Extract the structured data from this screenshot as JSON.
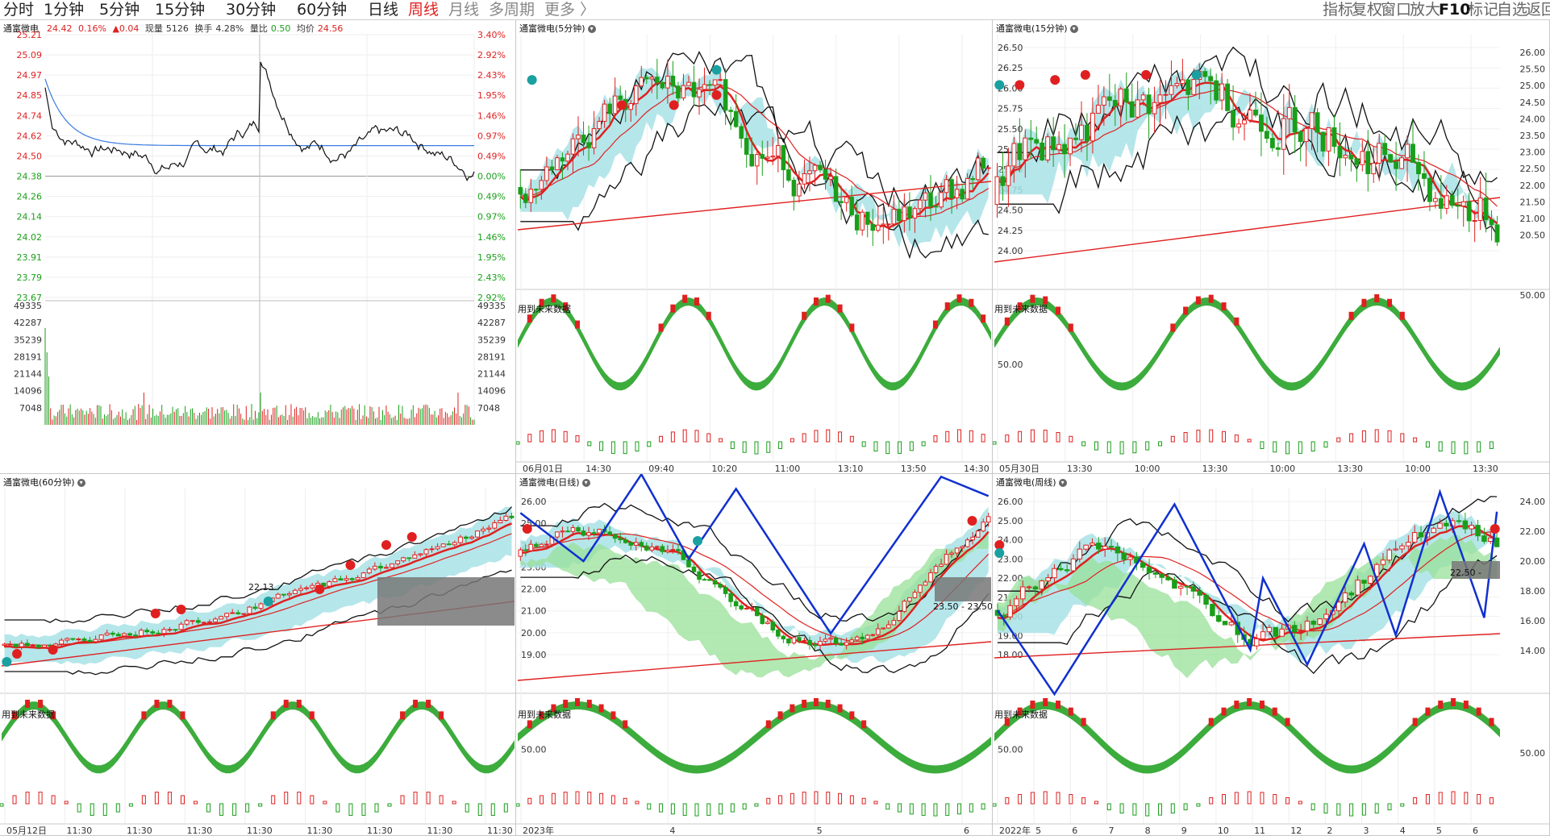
{
  "toolbar": {
    "tabs": [
      {
        "label": "分时",
        "active": false
      },
      {
        "label": "1分钟",
        "active": false
      },
      {
        "label": "5分钟",
        "active": false
      },
      {
        "label": "15分钟",
        "active": false
      },
      {
        "label": "30分钟",
        "active": false
      },
      {
        "label": "60分钟",
        "active": false
      },
      {
        "label": "日线",
        "active": false
      },
      {
        "label": "周线",
        "active": true
      },
      {
        "label": "月线",
        "active": false
      },
      {
        "label": "多周期",
        "active": false
      },
      {
        "label": "更多 〉",
        "active": false
      }
    ],
    "right": [
      "指标",
      "复权",
      "窗口",
      "放大",
      "F10",
      "标记",
      "自选",
      "返回"
    ]
  },
  "colors": {
    "up": "#e02020",
    "down": "#1a9e1a",
    "avg": "#3a7ae0",
    "price": "#111111",
    "grid": "#e6e6e6",
    "fill_cyan": "#a8e2e6",
    "fill_green": "#98e098",
    "zig": "#1030d0"
  },
  "icons": [
    "chevron-down-icon",
    "buy-signal-icon",
    "sell-signal-icon",
    "butterfly-icon",
    "up-arrow-icon",
    "down-arrow-icon"
  ],
  "panels": {
    "intraday": {
      "title": "通富微电",
      "info": {
        "price": "24.42",
        "pct": "0.16%",
        "chg": "▲0.04",
        "now_label": "现量",
        "now_val": "5126",
        "turn_label": "换手",
        "turn_val": "4.28%",
        "ratio_label": "量比",
        "ratio_val": "0.50",
        "avg_label": "均价",
        "avg_val": "24.56"
      },
      "price_ticks": [
        "25.21",
        "25.09",
        "24.97",
        "24.85",
        "24.74",
        "24.62",
        "24.50",
        "24.38",
        "24.26",
        "24.14",
        "24.02",
        "23.91",
        "23.79",
        "23.67"
      ],
      "pct_ticks": [
        "3.40%",
        "2.92%",
        "2.43%",
        "1.95%",
        "1.46%",
        "0.97%",
        "0.49%",
        "0.00%",
        "0.49%",
        "0.97%",
        "1.46%",
        "1.95%",
        "2.43%",
        "2.92%"
      ],
      "vol_ticks": [
        "49335",
        "42287",
        "35239",
        "28191",
        "21144",
        "14096",
        "7048"
      ]
    },
    "p5": {
      "title": "通富微电(5分钟)",
      "future": "用到未来数据",
      "x_labels": [
        "06月01日",
        "14:30",
        "09:40",
        "10:20",
        "11:00",
        "13:10",
        "13:50",
        "14:30"
      ]
    },
    "p15": {
      "title": "通富微电(15分钟)",
      "future": "用到未来数据",
      "y_ticks": [
        "26.50",
        "26.25",
        "26.00",
        "25.75",
        "25.50",
        "25.25",
        "25.00",
        "24.75",
        "24.50",
        "24.25",
        "24.00"
      ],
      "osc_tick": "50.00",
      "x_labels": [
        "05月30日",
        "13:30",
        "10:00",
        "13:30",
        "10:00",
        "13:30",
        "10:00",
        "13:30"
      ]
    },
    "p60": {
      "title": "通富微电(60分钟)",
      "future": "用到未来数据",
      "label": "22.13",
      "x_labels": [
        "05月12日",
        "11:30",
        "11:30",
        "11:30",
        "11:30",
        "11:30",
        "11:30",
        "11:30",
        "11:30"
      ]
    },
    "pday": {
      "title": "通富微电(日线)",
      "future": "用到未来数据",
      "y_ticks": [
        "26.00",
        "25.00",
        "24.00",
        "23.00",
        "22.00",
        "21.00",
        "20.00",
        "19.00"
      ],
      "osc_tick": "50.00",
      "label": "23.50 - 23.50",
      "x_labels": [
        "2023年",
        "4",
        "5",
        "6"
      ]
    },
    "pweek": {
      "title": "通富微电(周线)",
      "future": "用到未来数据",
      "y_ticks": [
        "26.00",
        "25.00",
        "24.00",
        "23.00",
        "22.00",
        "21.00",
        "20.00",
        "19.00",
        "18.00"
      ],
      "osc_tick": "50.00",
      "label": "22.50 -",
      "x_labels": [
        "2022年",
        "5",
        "6",
        "7",
        "8",
        "9",
        "10",
        "11",
        "12",
        "2",
        "3",
        "4",
        "5",
        "6"
      ]
    },
    "right_axis": {
      "y_ticks": [
        "26.00",
        "25.50",
        "25.00",
        "24.50",
        "24.00",
        "23.50",
        "23.00",
        "22.50",
        "22.00",
        "21.50",
        "21.00",
        "20.50"
      ],
      "osc_tick": "50.00",
      "y_ticks_bottom": [
        "24.00",
        "22.00",
        "20.00",
        "18.00",
        "16.00",
        "14.00"
      ],
      "osc_tick_bottom": "50.00"
    }
  },
  "chart_data": [
    {
      "type": "line",
      "title": "通富微电",
      "series": [],
      "ylim": [
        23.67,
        25.21
      ],
      "note_ticks": "price 23.67-25.21, volume 0-49335"
    },
    {
      "type": "bar",
      "title": "通富微电(5分钟)",
      "series": [],
      "x": [
        "06月01日",
        "14:30",
        "09:40",
        "10:20",
        "11:00",
        "13:10",
        "13:50",
        "14:30"
      ]
    },
    {
      "type": "bar",
      "title": "通富微电(15分钟)",
      "series": [],
      "ylim": [
        24.0,
        26.5
      ],
      "x": [
        "05月30日",
        "13:30",
        "10:00",
        "13:30",
        "10:00",
        "13:30",
        "10:00",
        "13:30"
      ]
    },
    {
      "type": "bar",
      "title": "通富微电(60分钟)",
      "series": [],
      "x": [
        "05月12日",
        "11:30",
        "11:30",
        "11:30",
        "11:30",
        "11:30",
        "11:30",
        "11:30",
        "11:30"
      ]
    },
    {
      "type": "bar",
      "title": "通富微电(日线)",
      "series": [],
      "ylim": [
        19.0,
        26.0
      ],
      "x": [
        "2023年",
        "4",
        "5",
        "6"
      ]
    },
    {
      "type": "bar",
      "title": "通富微电(周线)",
      "series": [],
      "ylim": [
        18.0,
        26.0
      ],
      "x": [
        "2022年",
        "5",
        "6",
        "7",
        "8",
        "9",
        "10",
        "11",
        "12",
        "2",
        "3",
        "4",
        "5",
        "6"
      ]
    }
  ]
}
